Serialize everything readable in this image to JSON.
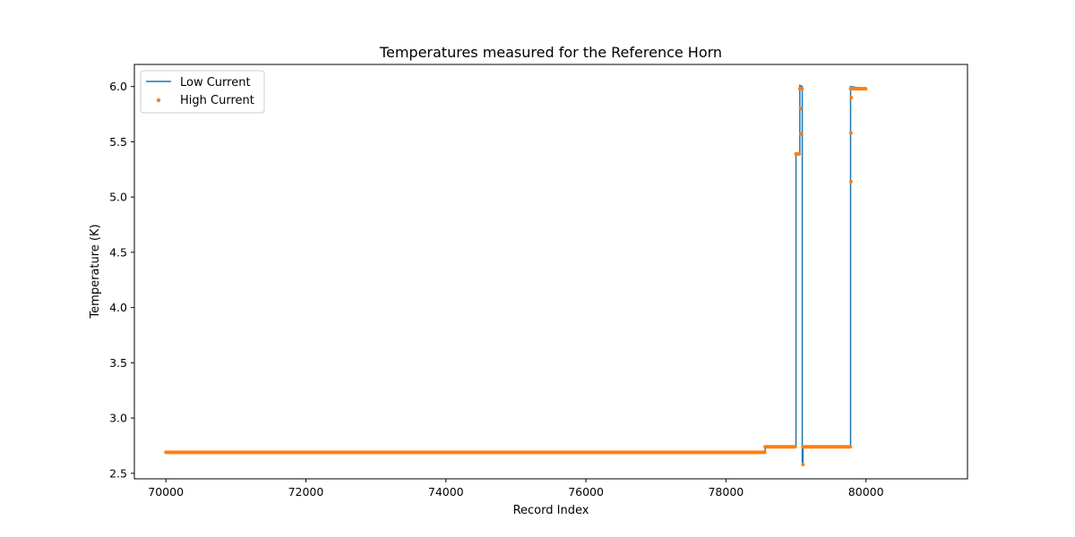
{
  "chart_data": {
    "type": "line",
    "title": "Temperatures measured for the Reference Horn",
    "xlabel": "Record Index",
    "ylabel": "Temperature (K)",
    "xlim": [
      69550,
      81450
    ],
    "ylim": [
      2.45,
      6.2
    ],
    "xticks": [
      70000,
      72000,
      74000,
      76000,
      78000,
      80000
    ],
    "yticks": [
      2.5,
      3.0,
      3.5,
      4.0,
      4.5,
      5.0,
      5.5,
      6.0
    ],
    "grid": false,
    "legend": {
      "placement": "top-left"
    },
    "series": [
      {
        "name": "Low Current",
        "kind": "line",
        "color": "#1f77b4",
        "x": [
          70000,
          78560,
          78560,
          79000,
          79000,
          79055,
          79055,
          79090,
          79090,
          79100,
          79100,
          79780,
          79780,
          80000
        ],
        "y": [
          2.69,
          2.69,
          2.74,
          2.74,
          5.39,
          5.39,
          6.01,
          6.0,
          2.6,
          2.6,
          2.74,
          2.74,
          6.0,
          5.98
        ]
      },
      {
        "name": "High Current",
        "kind": "scatter",
        "color": "#ff7f0e",
        "segments": [
          {
            "x0": 70000,
            "x1": 78560,
            "y": 2.69
          },
          {
            "x0": 78560,
            "x1": 79000,
            "y": 2.74
          },
          {
            "x0": 79000,
            "x1": 79055,
            "y": 5.39
          },
          {
            "x0": 79055,
            "x1": 79090,
            "y": 5.98
          },
          {
            "x0": 79100,
            "x1": 79780,
            "y": 2.74
          },
          {
            "x0": 79780,
            "x1": 80000,
            "y": 5.98
          }
        ],
        "extra_points": [
          {
            "x": 79065,
            "y": 5.8
          },
          {
            "x": 79070,
            "y": 5.57
          },
          {
            "x": 79100,
            "y": 2.58
          },
          {
            "x": 79785,
            "y": 5.58
          },
          {
            "x": 79785,
            "y": 5.14
          },
          {
            "x": 79790,
            "y": 5.9
          }
        ]
      }
    ]
  }
}
